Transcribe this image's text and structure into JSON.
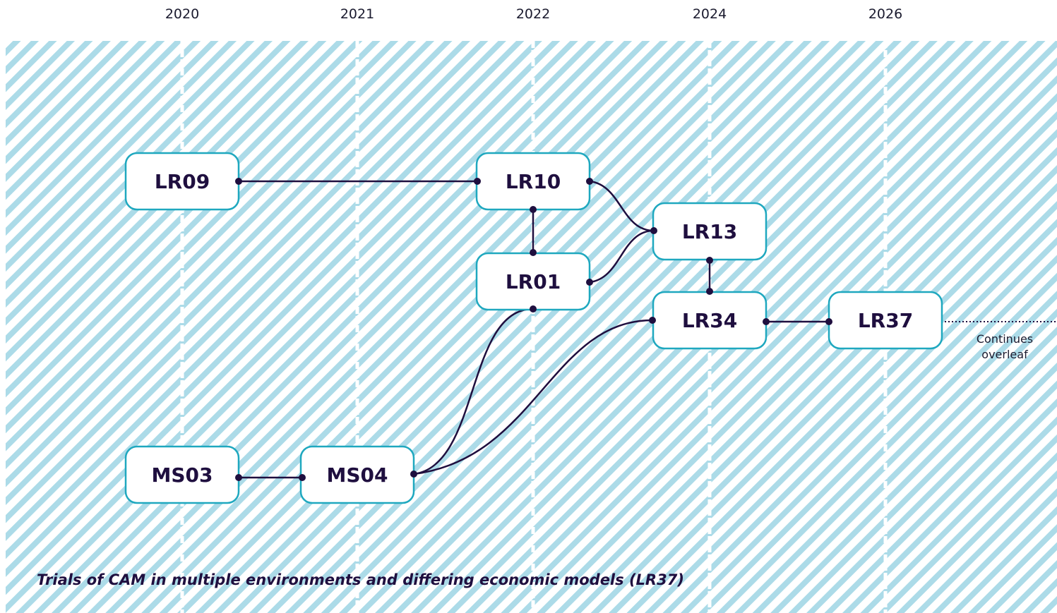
{
  "years": [
    "2020",
    "2021",
    "2022",
    "2024",
    "2026"
  ],
  "nodes": [
    "LR09",
    "LR10",
    "LR01",
    "LR13",
    "LR34",
    "LR37",
    "MS03",
    "MS04"
  ],
  "note": [
    "Continues",
    "overleaf"
  ],
  "caption": "Trials of CAM in multiple environments and differing economic models (LR37)"
}
